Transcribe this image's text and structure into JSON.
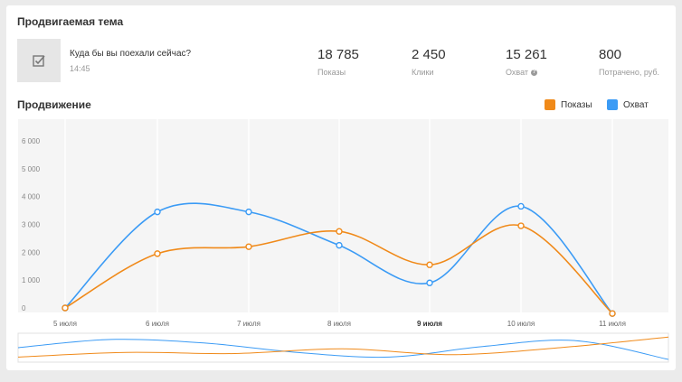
{
  "header": {
    "title": "Продвигаемая тема"
  },
  "topic": {
    "title": "Куда бы вы поехали сейчас?",
    "time": "14:45",
    "icon": "checkbox-edit-icon"
  },
  "stats": [
    {
      "value": "18 785",
      "label": "Показы"
    },
    {
      "value": "2 450",
      "label": "Клики"
    },
    {
      "value": "15 261",
      "label": "Охват",
      "help": "?"
    },
    {
      "value": "800",
      "label": "Потрачено, руб."
    }
  ],
  "promotion": {
    "title": "Продвижение"
  },
  "legend": [
    {
      "label": "Показы",
      "color": "#f08a1a"
    },
    {
      "label": "Охват",
      "color": "#3b9bf5"
    }
  ],
  "chart_data": {
    "type": "line",
    "categories": [
      "5 июля",
      "6 июля",
      "7 июля",
      "8 июля",
      "9 июля",
      "10 июля",
      "11 июля"
    ],
    "yticks": [
      "0",
      "1 000",
      "2 000",
      "3 000",
      "4 000",
      "5 000",
      "6 000"
    ],
    "ylim": [
      0,
      6000
    ],
    "series": [
      {
        "name": "Показы",
        "color": "#f08a1a",
        "values": [
          0,
          1950,
          2200,
          2750,
          1550,
          2950,
          -200
        ]
      },
      {
        "name": "Охват",
        "color": "#3b9bf5",
        "values": [
          0,
          3450,
          3450,
          2250,
          900,
          3650,
          -200
        ]
      }
    ],
    "navigator": {
      "orange": [
        0.1,
        0.3,
        0.25,
        0.45,
        0.2,
        0.5,
        0.95
      ],
      "blue": [
        0.5,
        0.85,
        0.7,
        0.3,
        0.1,
        0.55,
        0.8,
        0.0
      ]
    }
  }
}
